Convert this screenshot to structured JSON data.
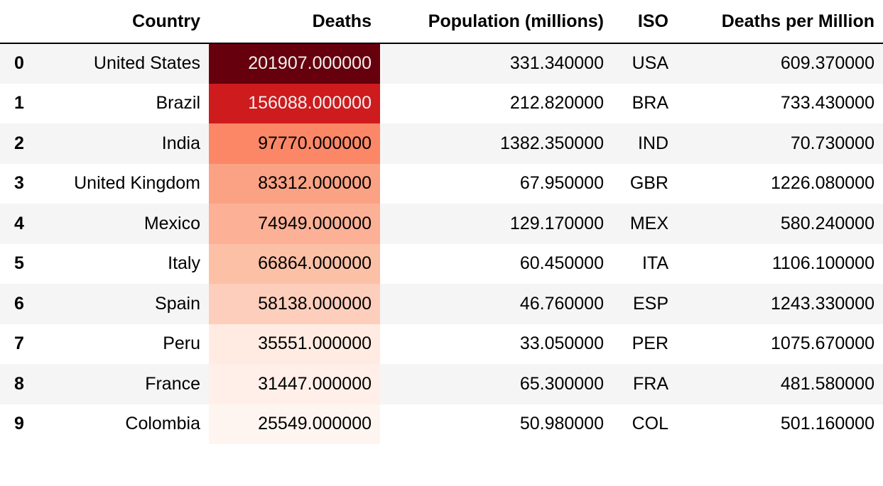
{
  "table": {
    "index_header": "",
    "columns": [
      "Country",
      "Deaths",
      "Population (millions)",
      "ISO",
      "Deaths per Million"
    ],
    "rows": [
      {
        "index": "0",
        "country": "United States",
        "deaths": "201907.000000",
        "population": "331.340000",
        "iso": "USA",
        "deaths_per_million": "609.370000",
        "deaths_value": 201907
      },
      {
        "index": "1",
        "country": "Brazil",
        "deaths": "156088.000000",
        "population": "212.820000",
        "iso": "BRA",
        "deaths_per_million": "733.430000",
        "deaths_value": 156088
      },
      {
        "index": "2",
        "country": "India",
        "deaths": "97770.000000",
        "population": "1382.350000",
        "iso": "IND",
        "deaths_per_million": "70.730000",
        "deaths_value": 97770
      },
      {
        "index": "3",
        "country": "United Kingdom",
        "deaths": "83312.000000",
        "population": "67.950000",
        "iso": "GBR",
        "deaths_per_million": "1226.080000",
        "deaths_value": 83312
      },
      {
        "index": "4",
        "country": "Mexico",
        "deaths": "74949.000000",
        "population": "129.170000",
        "iso": "MEX",
        "deaths_per_million": "580.240000",
        "deaths_value": 74949
      },
      {
        "index": "5",
        "country": "Italy",
        "deaths": "66864.000000",
        "population": "60.450000",
        "iso": "ITA",
        "deaths_per_million": "1106.100000",
        "deaths_value": 66864
      },
      {
        "index": "6",
        "country": "Spain",
        "deaths": "58138.000000",
        "population": "46.760000",
        "iso": "ESP",
        "deaths_per_million": "1243.330000",
        "deaths_value": 58138
      },
      {
        "index": "7",
        "country": "Peru",
        "deaths": "35551.000000",
        "population": "33.050000",
        "iso": "PER",
        "deaths_per_million": "1075.670000",
        "deaths_value": 35551
      },
      {
        "index": "8",
        "country": "France",
        "deaths": "31447.000000",
        "population": "65.300000",
        "iso": "FRA",
        "deaths_per_million": "481.580000",
        "deaths_value": 31447
      },
      {
        "index": "9",
        "country": "Colombia",
        "deaths": "25549.000000",
        "population": "50.980000",
        "iso": "COL",
        "deaths_per_million": "501.160000",
        "deaths_value": 25549
      }
    ]
  },
  "chart_data": {
    "type": "table",
    "columns": [
      "Country",
      "Deaths",
      "Population (millions)",
      "ISO",
      "Deaths per Million"
    ],
    "index": [
      0,
      1,
      2,
      3,
      4,
      5,
      6,
      7,
      8,
      9
    ],
    "data": [
      [
        "United States",
        201907,
        331.34,
        "USA",
        609.37
      ],
      [
        "Brazil",
        156088,
        212.82,
        "BRA",
        733.43
      ],
      [
        "India",
        97770,
        1382.35,
        "IND",
        70.73
      ],
      [
        "United Kingdom",
        83312,
        67.95,
        "GBR",
        1226.08
      ],
      [
        "Mexico",
        74949,
        129.17,
        "MEX",
        580.24
      ],
      [
        "Italy",
        66864,
        60.45,
        "ITA",
        1106.1
      ],
      [
        "Spain",
        58138,
        46.76,
        "ESP",
        1243.33
      ],
      [
        "Peru",
        35551,
        33.05,
        "PER",
        1075.67
      ],
      [
        "France",
        31447,
        65.3,
        "FRA",
        481.58
      ],
      [
        "Colombia",
        25549,
        50.98,
        "COL",
        501.16
      ]
    ],
    "heatmap_column": "Deaths",
    "colormap": "Reds",
    "colormap_stops": [
      "#fff5f0",
      "#fee0d2",
      "#fcbba1",
      "#fc9272",
      "#fb6a4a",
      "#ef3b2c",
      "#cb181d",
      "#a50f15",
      "#67000d"
    ]
  }
}
